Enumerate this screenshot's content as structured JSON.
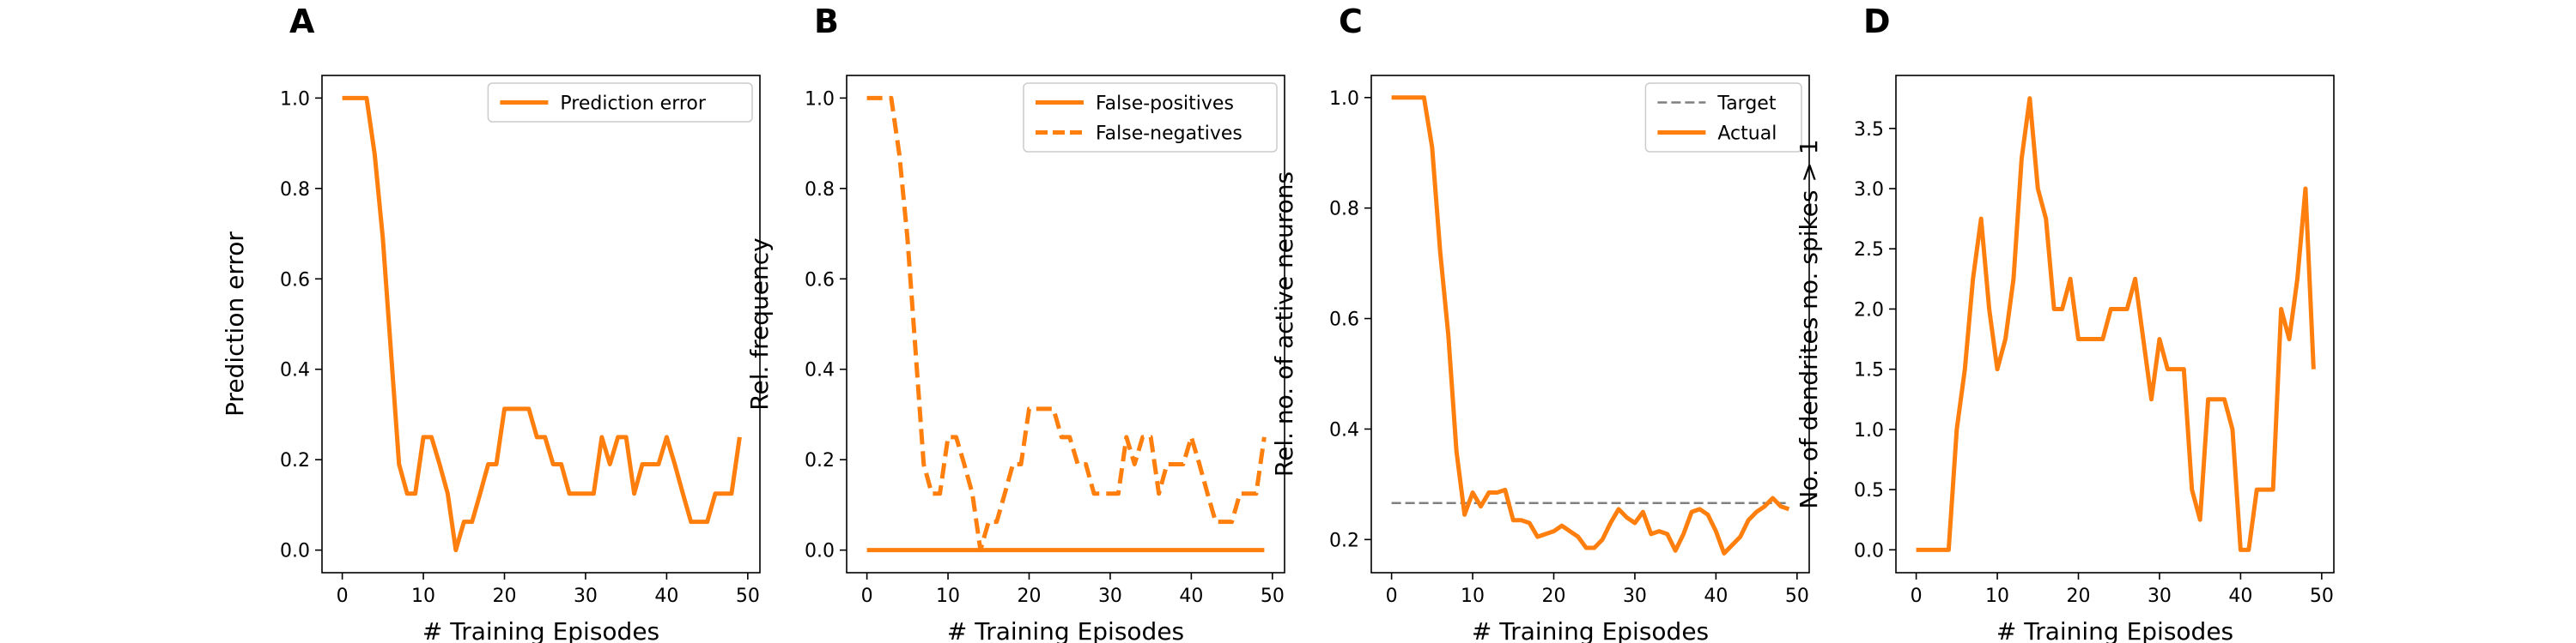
{
  "chart_data": [
    {
      "panel": "A",
      "type": "line",
      "xlabel": "# Training Episodes",
      "ylabel": "Prediction error",
      "xlim": [
        -2.5,
        51.5
      ],
      "ylim": [
        -0.05,
        1.05
      ],
      "xticks": [
        0,
        10,
        20,
        30,
        40,
        50
      ],
      "yticks": [
        0.0,
        0.2,
        0.4,
        0.6,
        0.8,
        1.0
      ],
      "ytick_decimals": 1,
      "legend": "top-right",
      "series": [
        {
          "name": "Prediction error",
          "color": "#ff7f0e",
          "dash": "solid",
          "in_legend": true,
          "x": [
            0,
            1,
            2,
            3,
            4,
            5,
            6,
            7,
            8,
            9,
            10,
            11,
            12,
            13,
            14,
            15,
            16,
            17,
            18,
            19,
            20,
            21,
            22,
            23,
            24,
            25,
            26,
            27,
            28,
            29,
            30,
            31,
            32,
            33,
            34,
            35,
            36,
            37,
            38,
            39,
            40,
            41,
            42,
            43,
            44,
            45,
            46,
            47,
            48,
            49
          ],
          "y": [
            1.0,
            1.0,
            1.0,
            1.0,
            0.875,
            0.69,
            0.44,
            0.19,
            0.125,
            0.125,
            0.25,
            0.25,
            0.19,
            0.125,
            0.0,
            0.0625,
            0.0625,
            0.125,
            0.19,
            0.19,
            0.3125,
            0.3125,
            0.3125,
            0.3125,
            0.25,
            0.25,
            0.19,
            0.19,
            0.125,
            0.125,
            0.125,
            0.125,
            0.25,
            0.19,
            0.25,
            0.25,
            0.125,
            0.19,
            0.19,
            0.19,
            0.25,
            0.19,
            0.125,
            0.0625,
            0.0625,
            0.0625,
            0.125,
            0.125,
            0.125,
            0.25
          ]
        }
      ]
    },
    {
      "panel": "B",
      "type": "line",
      "xlabel": "# Training Episodes",
      "ylabel": "Rel. frequency",
      "xlim": [
        -2.5,
        51.5
      ],
      "ylim": [
        -0.05,
        1.05
      ],
      "xticks": [
        0,
        10,
        20,
        30,
        40,
        50
      ],
      "yticks": [
        0.0,
        0.2,
        0.4,
        0.6,
        0.8,
        1.0
      ],
      "ytick_decimals": 1,
      "legend": "top-right",
      "series": [
        {
          "name": "False-positives",
          "color": "#ff7f0e",
          "dash": "solid",
          "in_legend": true,
          "x": [
            0,
            1,
            2,
            3,
            4,
            5,
            6,
            7,
            8,
            9,
            10,
            11,
            12,
            13,
            14,
            15,
            16,
            17,
            18,
            19,
            20,
            21,
            22,
            23,
            24,
            25,
            26,
            27,
            28,
            29,
            30,
            31,
            32,
            33,
            34,
            35,
            36,
            37,
            38,
            39,
            40,
            41,
            42,
            43,
            44,
            45,
            46,
            47,
            48,
            49
          ],
          "y": [
            0,
            0,
            0,
            0,
            0,
            0,
            0,
            0,
            0,
            0,
            0,
            0,
            0,
            0,
            0,
            0,
            0,
            0,
            0,
            0,
            0,
            0,
            0,
            0,
            0,
            0,
            0,
            0,
            0,
            0,
            0,
            0,
            0,
            0,
            0,
            0,
            0,
            0,
            0,
            0,
            0,
            0,
            0,
            0,
            0,
            0,
            0,
            0,
            0,
            0
          ]
        },
        {
          "name": "False-negatives",
          "color": "#ff7f0e",
          "dash": "dashed",
          "in_legend": true,
          "x": [
            0,
            1,
            2,
            3,
            4,
            5,
            6,
            7,
            8,
            9,
            10,
            11,
            12,
            13,
            14,
            15,
            16,
            17,
            18,
            19,
            20,
            21,
            22,
            23,
            24,
            25,
            26,
            27,
            28,
            29,
            30,
            31,
            32,
            33,
            34,
            35,
            36,
            37,
            38,
            39,
            40,
            41,
            42,
            43,
            44,
            45,
            46,
            47,
            48,
            49
          ],
          "y": [
            1.0,
            1.0,
            1.0,
            1.0,
            0.875,
            0.69,
            0.44,
            0.19,
            0.125,
            0.125,
            0.25,
            0.25,
            0.19,
            0.125,
            0.0,
            0.0625,
            0.0625,
            0.125,
            0.19,
            0.19,
            0.3125,
            0.3125,
            0.3125,
            0.3125,
            0.25,
            0.25,
            0.19,
            0.19,
            0.125,
            0.125,
            0.125,
            0.125,
            0.25,
            0.19,
            0.25,
            0.25,
            0.125,
            0.19,
            0.19,
            0.19,
            0.25,
            0.19,
            0.125,
            0.0625,
            0.0625,
            0.0625,
            0.125,
            0.125,
            0.125,
            0.25
          ]
        }
      ]
    },
    {
      "panel": "C",
      "type": "line",
      "xlabel": "# Training Episodes",
      "ylabel": "Rel. no. of active neurons",
      "xlim": [
        -2.5,
        51.5
      ],
      "ylim": [
        0.14,
        1.04
      ],
      "xticks": [
        0,
        10,
        20,
        30,
        40,
        50
      ],
      "yticks": [
        0.2,
        0.4,
        0.6,
        0.8,
        1.0
      ],
      "ytick_decimals": 1,
      "legend": "top-right",
      "series": [
        {
          "name": "Target",
          "color": "#7f7f7f",
          "dash": "dashed",
          "in_legend": true,
          "x": [
            0,
            49
          ],
          "y": [
            0.266,
            0.266
          ]
        },
        {
          "name": "Actual",
          "color": "#ff7f0e",
          "dash": "solid",
          "in_legend": true,
          "x": [
            0,
            1,
            2,
            3,
            4,
            5,
            6,
            7,
            8,
            9,
            10,
            11,
            12,
            13,
            14,
            15,
            16,
            17,
            18,
            19,
            20,
            21,
            22,
            23,
            24,
            25,
            26,
            27,
            28,
            29,
            30,
            31,
            32,
            33,
            34,
            35,
            36,
            37,
            38,
            39,
            40,
            41,
            42,
            43,
            44,
            45,
            46,
            47,
            48,
            49
          ],
          "y": [
            1.0,
            1.0,
            1.0,
            1.0,
            1.0,
            0.91,
            0.72,
            0.57,
            0.36,
            0.245,
            0.285,
            0.26,
            0.285,
            0.285,
            0.29,
            0.235,
            0.235,
            0.23,
            0.205,
            0.21,
            0.215,
            0.225,
            0.215,
            0.205,
            0.185,
            0.185,
            0.2,
            0.23,
            0.255,
            0.24,
            0.23,
            0.25,
            0.21,
            0.215,
            0.21,
            0.18,
            0.21,
            0.25,
            0.255,
            0.245,
            0.215,
            0.175,
            0.19,
            0.205,
            0.235,
            0.25,
            0.26,
            0.275,
            0.26,
            0.255
          ]
        }
      ]
    },
    {
      "panel": "D",
      "type": "line",
      "xlabel": "# Training Episodes",
      "ylabel": "No. of dendrites no. spikes > 1",
      "xlim": [
        -2.5,
        51.5
      ],
      "ylim": [
        -0.19,
        3.94
      ],
      "xticks": [
        0,
        10,
        20,
        30,
        40,
        50
      ],
      "yticks": [
        0.0,
        0.5,
        1.0,
        1.5,
        2.0,
        2.5,
        3.0,
        3.5
      ],
      "ytick_decimals": 1,
      "legend": "none",
      "series": [
        {
          "name": "",
          "color": "#ff7f0e",
          "dash": "solid",
          "in_legend": false,
          "x": [
            0,
            1,
            2,
            3,
            4,
            5,
            6,
            7,
            8,
            9,
            10,
            11,
            12,
            13,
            14,
            15,
            16,
            17,
            18,
            19,
            20,
            21,
            22,
            23,
            24,
            25,
            26,
            27,
            28,
            29,
            30,
            31,
            32,
            33,
            34,
            35,
            36,
            37,
            38,
            39,
            40,
            41,
            42,
            43,
            44,
            45,
            46,
            47,
            48,
            49
          ],
          "y": [
            0,
            0,
            0,
            0,
            0,
            1.0,
            1.5,
            2.25,
            2.75,
            2.0,
            1.5,
            1.75,
            2.25,
            3.25,
            3.75,
            3.0,
            2.75,
            2.0,
            2.0,
            2.25,
            1.75,
            1.75,
            1.75,
            1.75,
            2.0,
            2.0,
            2.0,
            2.25,
            1.75,
            1.25,
            1.75,
            1.5,
            1.5,
            1.5,
            0.5,
            0.25,
            1.25,
            1.25,
            1.25,
            1.0,
            0.0,
            0.0,
            0.5,
            0.5,
            0.5,
            2.0,
            1.75,
            2.25,
            3.0,
            1.5
          ]
        }
      ]
    }
  ]
}
